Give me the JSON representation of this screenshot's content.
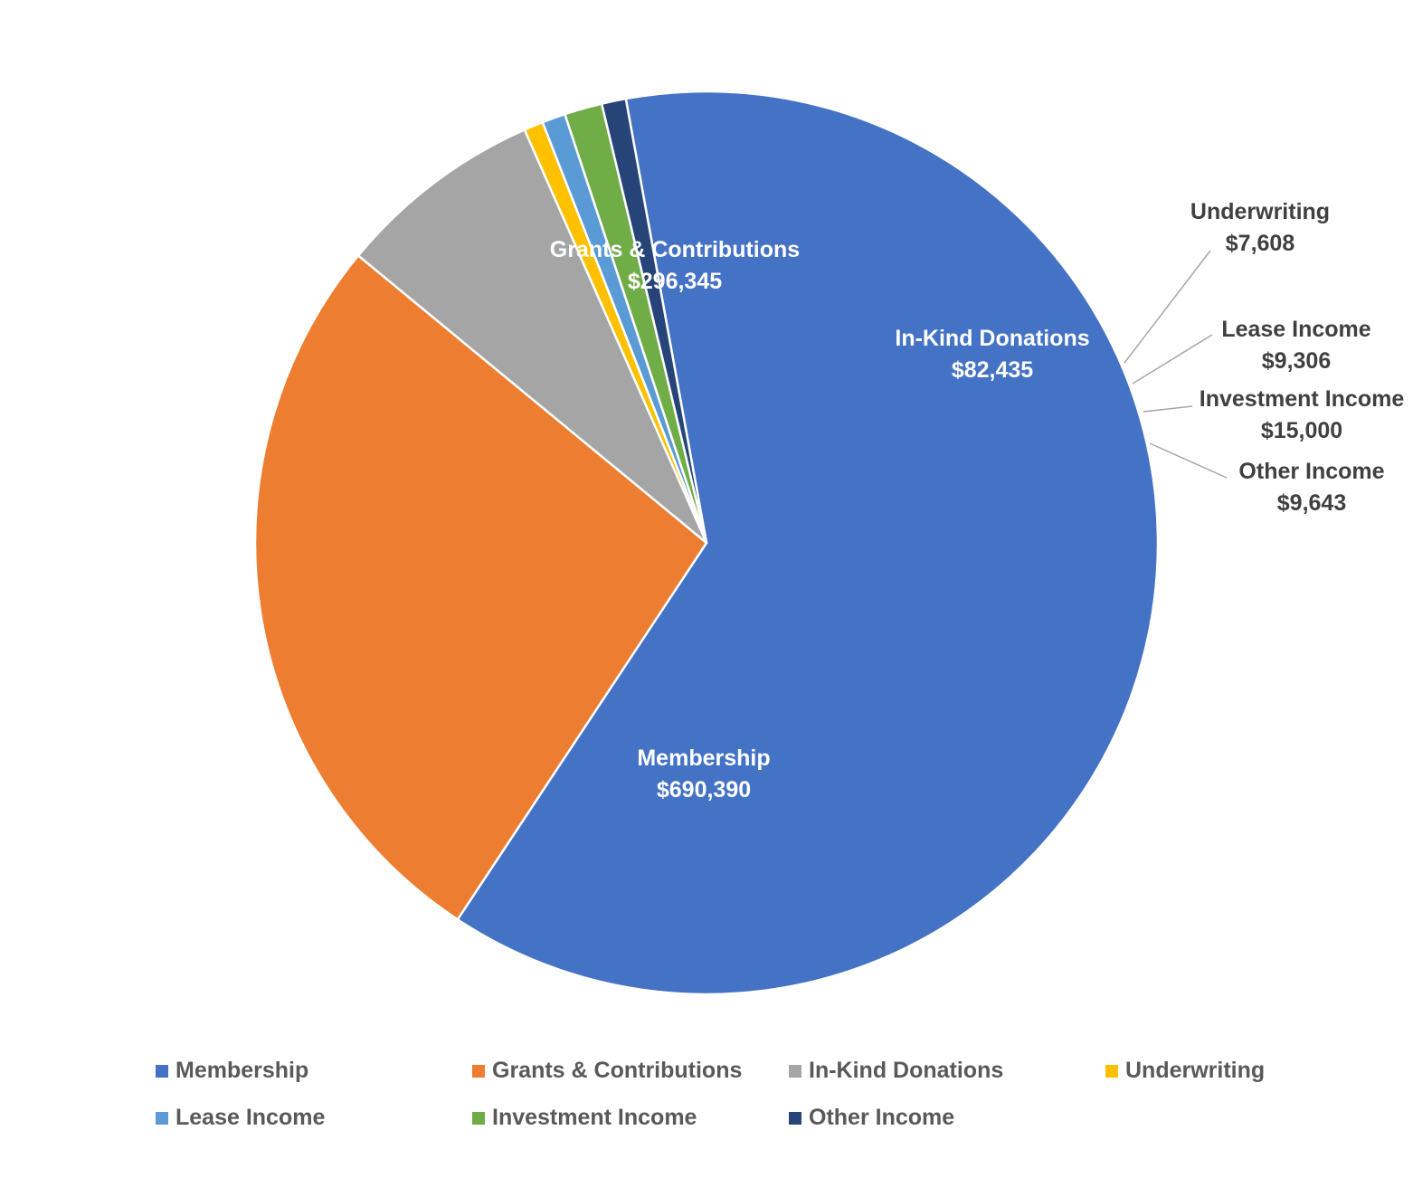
{
  "chart_data": {
    "type": "pie",
    "title": "",
    "slices": [
      {
        "name": "Membership",
        "value": 690390,
        "label": "$690,390",
        "color": "#4472C4",
        "label_color": "#ffffff",
        "label_mode": "inside"
      },
      {
        "name": "Grants & Contributions",
        "value": 296345,
        "label": "$296,345",
        "color": "#ED7D31",
        "label_color": "#ffffff",
        "label_mode": "inside"
      },
      {
        "name": "In-Kind Donations",
        "value": 82435,
        "label": "$82,435",
        "color": "#A5A5A5",
        "label_color": "#ffffff",
        "label_mode": "inside"
      },
      {
        "name": "Underwriting",
        "value": 7608,
        "label": "$7,608",
        "color": "#FFC000",
        "label_color": "#404040",
        "label_mode": "callout"
      },
      {
        "name": "Lease Income",
        "value": 9306,
        "label": "$9,306",
        "color": "#5B9BD5",
        "label_color": "#404040",
        "label_mode": "callout"
      },
      {
        "name": "Investment Income",
        "value": 15000,
        "label": "$15,000",
        "color": "#70AD47",
        "label_color": "#404040",
        "label_mode": "callout"
      },
      {
        "name": "Other Income",
        "value": 9643,
        "label": "$9,643",
        "color": "#264478",
        "label_color": "#404040",
        "label_mode": "callout"
      }
    ],
    "legend_position": "bottom",
    "start_angle_deg": -100.3,
    "direction": "clockwise",
    "show_values": true,
    "show_category_names": true
  }
}
